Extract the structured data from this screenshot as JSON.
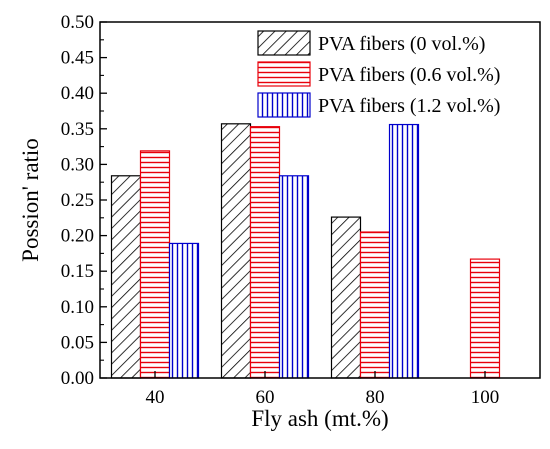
{
  "chart_data": {
    "type": "bar",
    "xlabel": "Fly ash (mt.%)",
    "ylabel": "Possion' ratio",
    "categories": [
      "40",
      "60",
      "80",
      "100"
    ],
    "ylim": [
      0,
      0.5
    ],
    "yticks": [
      "0.00",
      "0.05",
      "0.10",
      "0.15",
      "0.20",
      "0.25",
      "0.30",
      "0.35",
      "0.40",
      "0.45",
      "0.50"
    ],
    "legend_position": "top-right",
    "series": [
      {
        "name": "PVA fibers (0 vol.%)",
        "pattern": "diagonal-hatch",
        "color": "#000000",
        "values": [
          0.284,
          0.357,
          0.226,
          null
        ]
      },
      {
        "name": "PVA fibers (0.6 vol.%)",
        "pattern": "horizontal-stripes",
        "color": "#e8000b",
        "values": [
          0.319,
          0.353,
          0.205,
          0.167
        ]
      },
      {
        "name": "PVA fibers (1.2 vol.%)",
        "pattern": "vertical-stripes",
        "color": "#0000cc",
        "values": [
          0.189,
          0.284,
          0.356,
          null
        ]
      }
    ]
  }
}
